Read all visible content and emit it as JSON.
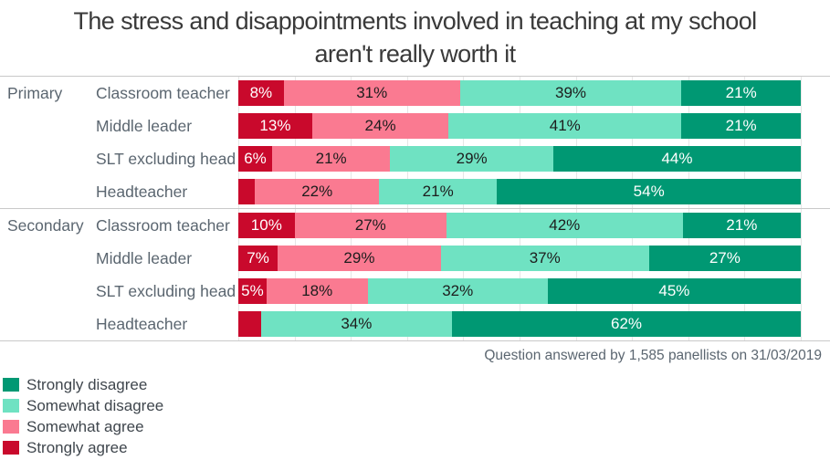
{
  "title": {
    "line1": "The stress and disappointments involved in teaching at my school",
    "line2": "aren't really worth it"
  },
  "footer": {
    "text": "Question answered by 1,585 panellists on 31/03/2019"
  },
  "colors": {
    "strongly_disagree": "#009873",
    "somewhat_disagree": "#6fe2c2",
    "somewhat_agree": "#fa7a91",
    "strongly_agree": "#c9092c",
    "label_on_dark": "#ffffff",
    "label_on_light": "#1d1d1d",
    "grid": "#e6e6e6",
    "border": "#c9c9c9",
    "axis_text": "#5b6670",
    "title_text": "#3a3a3a"
  },
  "legend": [
    {
      "label": "Strongly disagree",
      "series": "Strongly disagree"
    },
    {
      "label": "Somewhat disagree",
      "series": "Somewhat disagree"
    },
    {
      "label": "Somewhat agree",
      "series": "Somewhat agree"
    },
    {
      "label": "Strongly agree",
      "series": "Strongly agree"
    }
  ],
  "chart_data": {
    "type": "bar",
    "subtype": "horizontal-stacked-percent",
    "title": "The stress and disappointments involved in teaching at my school aren't really worth it",
    "xlim": [
      0,
      100
    ],
    "grid_interval_percent": 10,
    "legend_position": "bottom-left",
    "series": [
      {
        "name": "Strongly agree",
        "color": "#c9092c",
        "text_color": "#ffffff"
      },
      {
        "name": "Somewhat agree",
        "color": "#fa7a91",
        "text_color": "#1d1d1d"
      },
      {
        "name": "Somewhat disagree",
        "color": "#6fe2c2",
        "text_color": "#1d1d1d"
      },
      {
        "name": "Strongly disagree",
        "color": "#009873",
        "text_color": "#ffffff"
      }
    ],
    "groups": [
      {
        "label": "Primary",
        "rows": [
          {
            "label": "Classroom teacher",
            "segments": [
              {
                "series": "Strongly agree",
                "value": 8,
                "label": "8%"
              },
              {
                "series": "Somewhat agree",
                "value": 31,
                "label": "31%"
              },
              {
                "series": "Somewhat disagree",
                "value": 39,
                "label": "39%"
              },
              {
                "series": "Strongly disagree",
                "value": 21,
                "label": "21%"
              }
            ]
          },
          {
            "label": "Middle leader",
            "segments": [
              {
                "series": "Strongly agree",
                "value": 13,
                "label": "13%"
              },
              {
                "series": "Somewhat agree",
                "value": 24,
                "label": "24%"
              },
              {
                "series": "Somewhat disagree",
                "value": 41,
                "label": "41%"
              },
              {
                "series": "Strongly disagree",
                "value": 21,
                "label": "21%"
              }
            ]
          },
          {
            "label": "SLT excluding head",
            "segments": [
              {
                "series": "Strongly agree",
                "value": 6,
                "label": "6%"
              },
              {
                "series": "Somewhat agree",
                "value": 21,
                "label": "21%"
              },
              {
                "series": "Somewhat disagree",
                "value": 29,
                "label": "29%"
              },
              {
                "series": "Strongly disagree",
                "value": 44,
                "label": "44%"
              }
            ]
          },
          {
            "label": "Headteacher",
            "segments": [
              {
                "series": "Strongly agree",
                "value": 3,
                "label": ""
              },
              {
                "series": "Somewhat agree",
                "value": 22,
                "label": "22%"
              },
              {
                "series": "Somewhat disagree",
                "value": 21,
                "label": "21%"
              },
              {
                "series": "Strongly disagree",
                "value": 54,
                "label": "54%"
              }
            ]
          }
        ]
      },
      {
        "label": "Secondary",
        "rows": [
          {
            "label": "Classroom teacher",
            "segments": [
              {
                "series": "Strongly agree",
                "value": 10,
                "label": "10%"
              },
              {
                "series": "Somewhat agree",
                "value": 27,
                "label": "27%"
              },
              {
                "series": "Somewhat disagree",
                "value": 42,
                "label": "42%"
              },
              {
                "series": "Strongly disagree",
                "value": 21,
                "label": "21%"
              }
            ]
          },
          {
            "label": "Middle leader",
            "segments": [
              {
                "series": "Strongly agree",
                "value": 7,
                "label": "7%"
              },
              {
                "series": "Somewhat agree",
                "value": 29,
                "label": "29%"
              },
              {
                "series": "Somewhat disagree",
                "value": 37,
                "label": "37%"
              },
              {
                "series": "Strongly disagree",
                "value": 27,
                "label": "27%"
              }
            ]
          },
          {
            "label": "SLT excluding head",
            "segments": [
              {
                "series": "Strongly agree",
                "value": 5,
                "label": "5%"
              },
              {
                "series": "Somewhat agree",
                "value": 18,
                "label": "18%"
              },
              {
                "series": "Somewhat disagree",
                "value": 32,
                "label": "32%"
              },
              {
                "series": "Strongly disagree",
                "value": 45,
                "label": "45%"
              }
            ]
          },
          {
            "label": "Headteacher",
            "segments": [
              {
                "series": "Strongly agree",
                "value": 4,
                "label": ""
              },
              {
                "series": "Somewhat agree",
                "value": 0,
                "label": ""
              },
              {
                "series": "Somewhat disagree",
                "value": 34,
                "label": "34%"
              },
              {
                "series": "Strongly disagree",
                "value": 62,
                "label": "62%"
              }
            ]
          }
        ]
      }
    ]
  }
}
